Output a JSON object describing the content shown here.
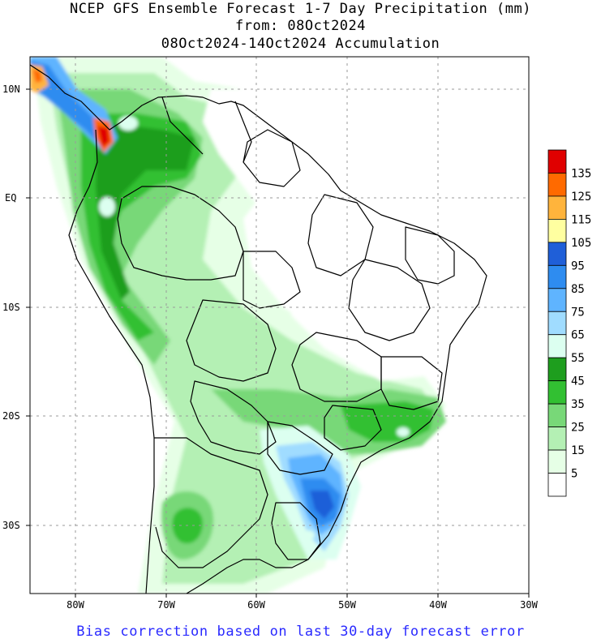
{
  "title": {
    "line1": "NCEP GFS Ensemble Forecast 1-7 Day Precipitation (mm)",
    "line2": "from: 08Oct2024",
    "line3": "08Oct2024-14Oct2024 Accumulation"
  },
  "axes": {
    "lat_labels": [
      "10N",
      "EQ",
      "10S",
      "20S",
      "30S"
    ],
    "lon_labels": [
      "80W",
      "70W",
      "60W",
      "50W",
      "40W",
      "30W"
    ]
  },
  "legend": {
    "labels": [
      "135",
      "125",
      "115",
      "105",
      "95",
      "85",
      "75",
      "65",
      "55",
      "45",
      "35",
      "25",
      "15",
      "5"
    ],
    "colors": [
      "#e00000",
      "#ff6a00",
      "#ffb43c",
      "#ffffa0",
      "#1f5fd8",
      "#2e8cf0",
      "#5fb4ff",
      "#a0dcff",
      "#dcfff0",
      "#1e9e1e",
      "#32c032",
      "#78d878",
      "#b4f0b4",
      "#e6ffe6",
      "#ffffff"
    ]
  },
  "footer": "Bias correction based on last 30-day forecast error"
}
